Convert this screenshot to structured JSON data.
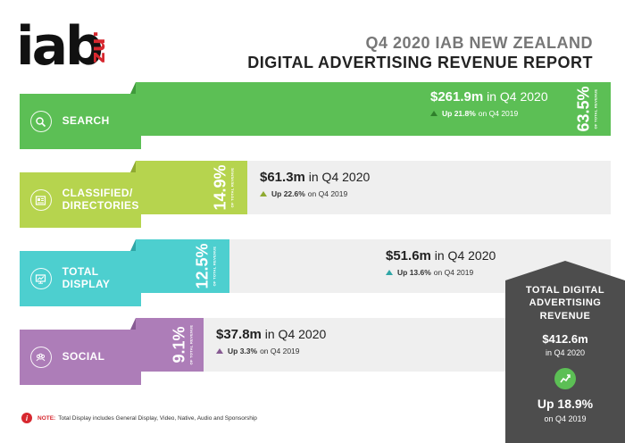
{
  "header": {
    "logo_main": "iab",
    "logo_suffix": ".nz",
    "title_line1": "Q4 2020 IAB NEW ZEALAND",
    "title_line2": "DIGITAL ADVERTISING REVENUE REPORT"
  },
  "chart_data": {
    "type": "bar",
    "orientation": "horizontal",
    "categories": [
      "SEARCH",
      "CLASSIFIED/ DIRECTORIES",
      "TOTAL DISPLAY",
      "SOCIAL"
    ],
    "share_pct": [
      63.5,
      14.9,
      12.5,
      9.1
    ],
    "share_label": [
      "63.5%",
      "14.9%",
      "12.5%",
      "9.1%"
    ],
    "share_caption": "OF TOTAL REVENUE",
    "revenue": [
      "$261.9m",
      "$61.3m",
      "$51.6m",
      "$37.8m"
    ],
    "revenue_millions": [
      261.9,
      61.3,
      51.6,
      37.8
    ],
    "period_text": "in Q4 2020",
    "growth": [
      "Up 21.8%",
      "Up 22.6%",
      "Up 13.6%",
      "Up 3.3%"
    ],
    "growth_pct": [
      21.8,
      22.6,
      13.6,
      3.3
    ],
    "compare_text": "on Q4 2019",
    "colors": [
      "#5cbf55",
      "#b6d44e",
      "#4dcfcf",
      "#ad7db8"
    ],
    "stub_colors": [
      "#3f9a3b",
      "#8faa31",
      "#2fa6a6",
      "#875b93"
    ],
    "band_color": "#efefef",
    "icons": [
      "search-icon",
      "directory-icon",
      "display-monitor-icon",
      "people-icon"
    ]
  },
  "total": {
    "heading_line1": "TOTAL DIGITAL",
    "heading_line2": "ADVERTISING",
    "heading_line3": "REVENUE",
    "value": "$412.6m",
    "value_sub": "in Q4 2020",
    "icon": "trend-up-icon",
    "growth": "Up 18.9%",
    "growth_sub": "on Q4 2019"
  },
  "note": {
    "icon_char": "i",
    "label": "NOTE:",
    "text": "Total Display includes General Display, Video, Native, Audio and Sponsorship"
  }
}
